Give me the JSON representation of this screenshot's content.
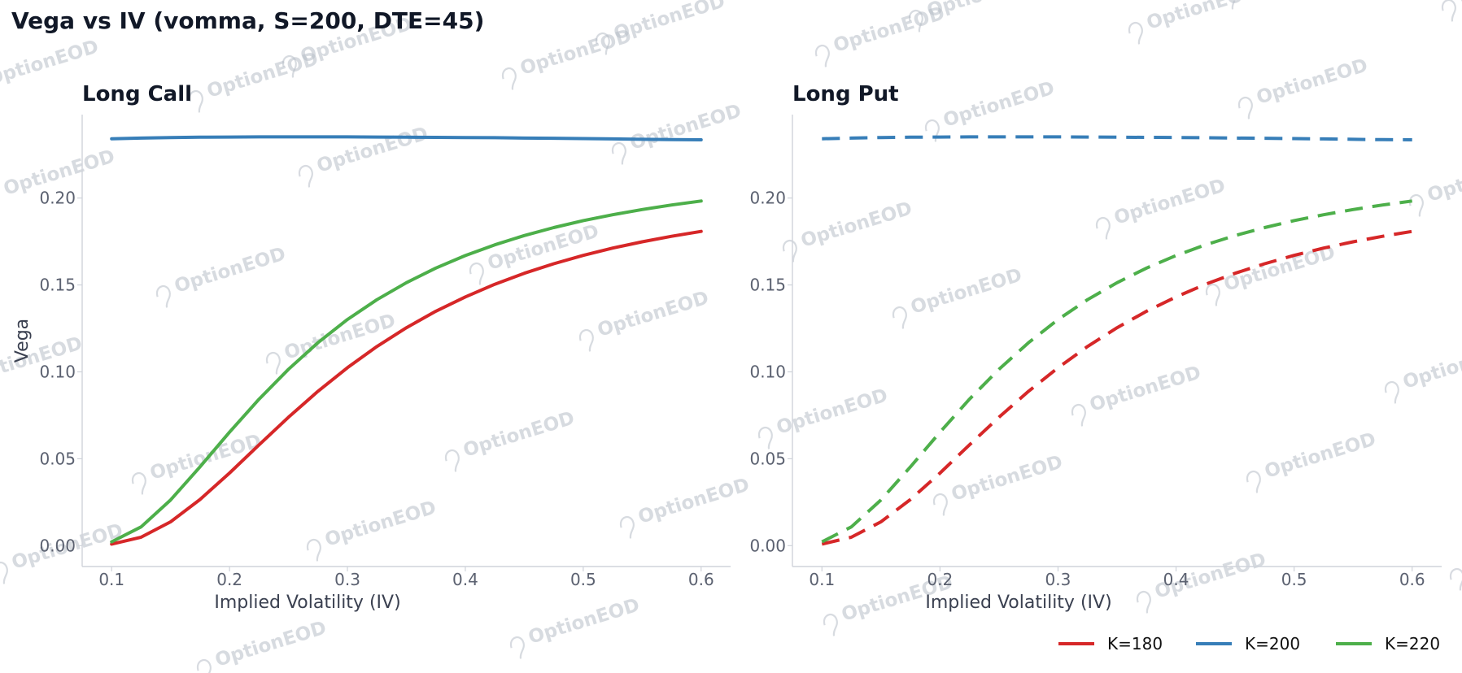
{
  "watermark": "OptionEOD",
  "chart_data": [
    {
      "type": "line",
      "title": "Long Call",
      "xlabel": "Implied Volatility (IV)",
      "ylabel": "Vega",
      "xlim": [
        0.075,
        0.625
      ],
      "ylim": [
        -0.012,
        0.248
      ],
      "xticks": [
        "0.1",
        "0.2",
        "0.3",
        "0.4",
        "0.5",
        "0.6"
      ],
      "yticks": [
        "0.00",
        "0.05",
        "0.10",
        "0.15",
        "0.20"
      ],
      "line_style": "solid",
      "grid": false,
      "x": [
        0.1,
        0.125,
        0.15,
        0.175,
        0.2,
        0.225,
        0.25,
        0.275,
        0.3,
        0.325,
        0.35,
        0.375,
        0.4,
        0.425,
        0.45,
        0.475,
        0.5,
        0.525,
        0.55,
        0.575,
        0.6
      ],
      "series": [
        {
          "name": "K=180",
          "color": "#d62728",
          "values": [
            0.0009,
            0.0049,
            0.0137,
            0.0266,
            0.0418,
            0.058,
            0.0739,
            0.0888,
            0.1024,
            0.1146,
            0.1254,
            0.1349,
            0.1431,
            0.1504,
            0.1567,
            0.1622,
            0.167,
            0.1712,
            0.1748,
            0.178,
            0.1808
          ]
        },
        {
          "name": "K=200",
          "color": "#377eb8",
          "values": [
            0.2341,
            0.2345,
            0.2348,
            0.235,
            0.2351,
            0.2352,
            0.2352,
            0.2352,
            0.2352,
            0.2351,
            0.235,
            0.2349,
            0.2348,
            0.2347,
            0.2345,
            0.2344,
            0.2342,
            0.234,
            0.2338,
            0.2336,
            0.2335
          ]
        },
        {
          "name": "K=220",
          "color": "#4daf4a",
          "values": [
            0.0022,
            0.0108,
            0.0263,
            0.0454,
            0.0653,
            0.0843,
            0.1015,
            0.1168,
            0.1301,
            0.1415,
            0.1513,
            0.1597,
            0.1669,
            0.1731,
            0.1784,
            0.183,
            0.187,
            0.1904,
            0.1934,
            0.196,
            0.1983
          ]
        }
      ]
    },
    {
      "type": "line",
      "title": "Long Put",
      "xlabel": "Implied Volatility (IV)",
      "ylabel": "",
      "xlim": [
        0.075,
        0.625
      ],
      "ylim": [
        -0.012,
        0.248
      ],
      "xticks": [
        "0.1",
        "0.2",
        "0.3",
        "0.4",
        "0.5",
        "0.6"
      ],
      "yticks": [
        "0.00",
        "0.05",
        "0.10",
        "0.15",
        "0.20"
      ],
      "line_style": "dashed",
      "grid": false,
      "x": [
        0.1,
        0.125,
        0.15,
        0.175,
        0.2,
        0.225,
        0.25,
        0.275,
        0.3,
        0.325,
        0.35,
        0.375,
        0.4,
        0.425,
        0.45,
        0.475,
        0.5,
        0.525,
        0.55,
        0.575,
        0.6
      ],
      "series": [
        {
          "name": "K=180",
          "color": "#d62728",
          "values": [
            0.0009,
            0.0049,
            0.0137,
            0.0266,
            0.0418,
            0.058,
            0.0739,
            0.0888,
            0.1024,
            0.1146,
            0.1254,
            0.1349,
            0.1431,
            0.1504,
            0.1567,
            0.1622,
            0.167,
            0.1712,
            0.1748,
            0.178,
            0.1808
          ]
        },
        {
          "name": "K=200",
          "color": "#377eb8",
          "values": [
            0.2341,
            0.2345,
            0.2348,
            0.235,
            0.2351,
            0.2352,
            0.2352,
            0.2352,
            0.2352,
            0.2351,
            0.235,
            0.2349,
            0.2348,
            0.2347,
            0.2345,
            0.2344,
            0.2342,
            0.234,
            0.2338,
            0.2336,
            0.2335
          ]
        },
        {
          "name": "K=220",
          "color": "#4daf4a",
          "values": [
            0.0022,
            0.0108,
            0.0263,
            0.0454,
            0.0653,
            0.0843,
            0.1015,
            0.1168,
            0.1301,
            0.1415,
            0.1513,
            0.1597,
            0.1669,
            0.1731,
            0.1784,
            0.183,
            0.187,
            0.1904,
            0.1934,
            0.196,
            0.1983
          ]
        }
      ]
    }
  ],
  "figure": {
    "title": "Vega vs IV (vomma, S=200, DTE=45)",
    "legend_position": "bottom-right",
    "legend": [
      {
        "label": "K=180",
        "color": "#d62728"
      },
      {
        "label": "K=200",
        "color": "#377eb8"
      },
      {
        "label": "K=220",
        "color": "#4daf4a"
      }
    ]
  }
}
